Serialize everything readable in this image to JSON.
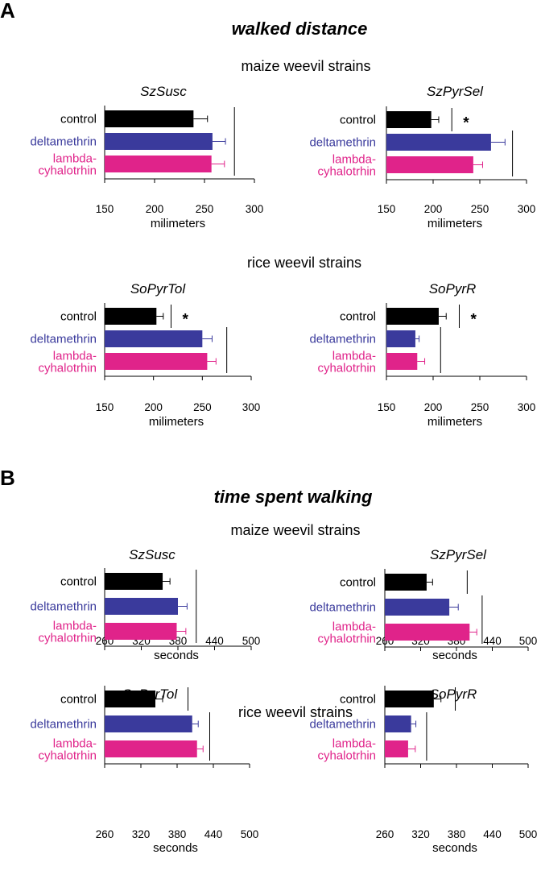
{
  "panels": [
    {
      "label": "A",
      "title": "walked distance",
      "groups": [
        "maize weevil strains",
        "rice weevil strains"
      ]
    },
    {
      "label": "B",
      "title": "time spent walking",
      "groups": [
        "maize weevil strains",
        "rice weevil strains"
      ]
    }
  ],
  "colors": {
    "control": "#000000",
    "deltamethrin": "#3a3a9c",
    "lambda": "#e0238a"
  },
  "chart_data": [
    {
      "type": "bar",
      "orientation": "horizontal",
      "title": "SzSusc",
      "categories": [
        "control",
        "deltamethrin",
        "lambda-\ncyhalotrhin"
      ],
      "values": [
        239,
        258,
        257
      ],
      "errors": [
        14,
        13,
        13
      ],
      "xlabel": "milimeters",
      "xlim": [
        150,
        300
      ],
      "ticks": [
        150,
        200,
        250,
        300
      ],
      "brackets": [
        {
          "from": 0,
          "to": 2,
          "x": 280,
          "label": ""
        }
      ]
    },
    {
      "type": "bar",
      "orientation": "horizontal",
      "title": "SzPyrSel",
      "categories": [
        "control",
        "deltamethrin",
        "lambda-\ncyhalotrhin"
      ],
      "values": [
        198,
        262,
        243
      ],
      "errors": [
        8,
        15,
        10
      ],
      "xlabel": "milimeters",
      "xlim": [
        150,
        300
      ],
      "ticks": [
        150,
        200,
        250,
        300
      ],
      "brackets": [
        {
          "from": 0,
          "to": 0,
          "x": 220,
          "label": "*"
        },
        {
          "from": 1,
          "to": 2,
          "x": 285,
          "label": ""
        }
      ]
    },
    {
      "type": "bar",
      "orientation": "horizontal",
      "title": "SoPyrTol",
      "categories": [
        "control",
        "deltamethrin",
        "lambda-\ncyhalotrhin"
      ],
      "values": [
        203,
        250,
        255
      ],
      "errors": [
        7,
        10,
        9
      ],
      "xlabel": "milimeters",
      "xlim": [
        150,
        300
      ],
      "ticks": [
        150,
        200,
        250,
        300
      ],
      "brackets": [
        {
          "from": 0,
          "to": 0,
          "x": 218,
          "label": "*"
        },
        {
          "from": 1,
          "to": 2,
          "x": 275,
          "label": ""
        }
      ]
    },
    {
      "type": "bar",
      "orientation": "horizontal",
      "title": "SoPyrR",
      "categories": [
        "control",
        "deltamethrin",
        "lambda-\ncyhalotrhin"
      ],
      "values": [
        206,
        181,
        183
      ],
      "errors": [
        8,
        4,
        8
      ],
      "xlabel": "milimeters",
      "xlim": [
        150,
        300
      ],
      "ticks": [
        150,
        200,
        250,
        300
      ],
      "brackets": [
        {
          "from": 0,
          "to": 0,
          "x": 228,
          "label": "*"
        },
        {
          "from": 1,
          "to": 2,
          "x": 208,
          "label": ""
        }
      ]
    },
    {
      "type": "bar",
      "orientation": "horizontal",
      "title": "SzSusc",
      "categories": [
        "control",
        "deltamethrin",
        "lambda-\ncyhalotrhin"
      ],
      "values": [
        355,
        380,
        378
      ],
      "errors": [
        12,
        15,
        15
      ],
      "xlabel": "seconds",
      "xlim": [
        260,
        500
      ],
      "ticks": [
        260,
        320,
        380,
        440,
        500
      ],
      "brackets": [
        {
          "from": 0,
          "to": 2,
          "x": 410,
          "label": ""
        }
      ]
    },
    {
      "type": "bar",
      "orientation": "horizontal",
      "title": "SzPyrSel",
      "categories": [
        "control",
        "deltamethrin",
        "lambda-\ncyhalotrhin"
      ],
      "values": [
        330,
        368,
        402
      ],
      "errors": [
        10,
        15,
        12
      ],
      "xlabel": "seconds",
      "xlim": [
        260,
        500
      ],
      "ticks": [
        260,
        320,
        380,
        440,
        500
      ],
      "brackets": [
        {
          "from": 0,
          "to": 0,
          "x": 398,
          "label": ""
        },
        {
          "from": 1,
          "to": 2,
          "x": 423,
          "label": ""
        }
      ]
    },
    {
      "type": "bar",
      "orientation": "horizontal",
      "title": "SoPyrTol",
      "categories": [
        "control",
        "deltamethrin",
        "lambda-\ncyhalotrhin"
      ],
      "values": [
        344,
        405,
        413
      ],
      "errors": [
        12,
        10,
        10
      ],
      "xlabel": "seconds",
      "xlim": [
        260,
        500
      ],
      "ticks": [
        260,
        320,
        380,
        440,
        500
      ],
      "brackets": [
        {
          "from": 0,
          "to": 0,
          "x": 398,
          "label": ""
        },
        {
          "from": 1,
          "to": 2,
          "x": 434,
          "label": ""
        }
      ]
    },
    {
      "type": "bar",
      "orientation": "horizontal",
      "title": "SoPyrR",
      "categories": [
        "control",
        "deltamethrin",
        "lambda-\ncyhalotrhin"
      ],
      "values": [
        342,
        304,
        299
      ],
      "errors": [
        12,
        8,
        12
      ],
      "xlabel": "seconds",
      "xlim": [
        260,
        500
      ],
      "ticks": [
        260,
        320,
        380,
        440,
        500
      ],
      "brackets": [
        {
          "from": 0,
          "to": 0,
          "x": 378,
          "label": ""
        },
        {
          "from": 1,
          "to": 2,
          "x": 330,
          "label": ""
        }
      ]
    }
  ]
}
